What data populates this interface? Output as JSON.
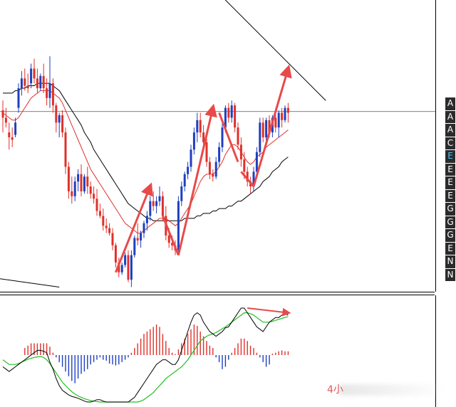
{
  "chart_data": [
    {
      "type": "candlestick",
      "panel": "price",
      "title": "",
      "grid": false,
      "colors": {
        "up": "#1f3fbf",
        "down": "#e0302a",
        "ma_fast": "#e0302a",
        "ma_slow": "#000000",
        "annotation": "#e84a4a"
      },
      "y_range": [
        0,
        100
      ],
      "horizontal_level": 70.5,
      "candles": [
        {
          "o": 71,
          "h": 75,
          "l": 62,
          "c": 68
        },
        {
          "o": 68,
          "h": 72,
          "l": 64,
          "c": 66
        },
        {
          "o": 62,
          "h": 66,
          "l": 55,
          "c": 60
        },
        {
          "o": 60,
          "h": 64,
          "l": 56,
          "c": 59
        },
        {
          "o": 61,
          "h": 68,
          "l": 60,
          "c": 66
        },
        {
          "o": 72,
          "h": 82,
          "l": 70,
          "c": 80
        },
        {
          "o": 80,
          "h": 87,
          "l": 77,
          "c": 84
        },
        {
          "o": 84,
          "h": 88,
          "l": 79,
          "c": 81
        },
        {
          "o": 81,
          "h": 86,
          "l": 78,
          "c": 80
        },
        {
          "o": 82,
          "h": 90,
          "l": 80,
          "c": 88
        },
        {
          "o": 88,
          "h": 92,
          "l": 82,
          "c": 84
        },
        {
          "o": 84,
          "h": 88,
          "l": 78,
          "c": 80
        },
        {
          "o": 80,
          "h": 86,
          "l": 79,
          "c": 85
        },
        {
          "o": 85,
          "h": 90,
          "l": 78,
          "c": 80
        },
        {
          "o": 80,
          "h": 84,
          "l": 73,
          "c": 76
        },
        {
          "o": 76,
          "h": 93,
          "l": 72,
          "c": 82
        },
        {
          "o": 82,
          "h": 84,
          "l": 70,
          "c": 73
        },
        {
          "o": 73,
          "h": 74,
          "l": 62,
          "c": 66
        },
        {
          "o": 66,
          "h": 70,
          "l": 60,
          "c": 69
        },
        {
          "o": 69,
          "h": 71,
          "l": 60,
          "c": 62
        },
        {
          "o": 62,
          "h": 64,
          "l": 45,
          "c": 48
        },
        {
          "o": 48,
          "h": 50,
          "l": 35,
          "c": 38
        },
        {
          "o": 38,
          "h": 44,
          "l": 33,
          "c": 36
        },
        {
          "o": 36,
          "h": 44,
          "l": 34,
          "c": 42
        },
        {
          "o": 42,
          "h": 47,
          "l": 38,
          "c": 45
        },
        {
          "o": 45,
          "h": 49,
          "l": 36,
          "c": 38
        },
        {
          "o": 38,
          "h": 45,
          "l": 37,
          "c": 44
        },
        {
          "o": 44,
          "h": 48,
          "l": 37,
          "c": 40
        },
        {
          "o": 40,
          "h": 42,
          "l": 35,
          "c": 37
        },
        {
          "o": 37,
          "h": 40,
          "l": 33,
          "c": 35
        },
        {
          "o": 35,
          "h": 39,
          "l": 28,
          "c": 30
        },
        {
          "o": 30,
          "h": 33,
          "l": 27,
          "c": 28
        },
        {
          "o": 28,
          "h": 31,
          "l": 22,
          "c": 24
        },
        {
          "o": 24,
          "h": 27,
          "l": 21,
          "c": 23
        },
        {
          "o": 23,
          "h": 25,
          "l": 20,
          "c": 21
        },
        {
          "o": 21,
          "h": 23,
          "l": 14,
          "c": 16
        },
        {
          "o": 16,
          "h": 17,
          "l": 7,
          "c": 9
        },
        {
          "o": 9,
          "h": 11,
          "l": 3,
          "c": 5
        },
        {
          "o": 5,
          "h": 9,
          "l": 4,
          "c": 8
        },
        {
          "o": 8,
          "h": 13,
          "l": 7,
          "c": 12
        },
        {
          "o": 12,
          "h": 14,
          "l": 1,
          "c": 2
        },
        {
          "o": 2,
          "h": 14,
          "l": -1,
          "c": 12
        },
        {
          "o": 12,
          "h": 20,
          "l": 11,
          "c": 19
        },
        {
          "o": 19,
          "h": 25,
          "l": 16,
          "c": 18
        },
        {
          "o": 18,
          "h": 22,
          "l": 15,
          "c": 21
        },
        {
          "o": 21,
          "h": 26,
          "l": 19,
          "c": 25
        },
        {
          "o": 25,
          "h": 30,
          "l": 22,
          "c": 28
        },
        {
          "o": 28,
          "h": 36,
          "l": 26,
          "c": 34
        },
        {
          "o": 34,
          "h": 38,
          "l": 30,
          "c": 32
        },
        {
          "o": 32,
          "h": 36,
          "l": 29,
          "c": 34
        },
        {
          "o": 34,
          "h": 40,
          "l": 32,
          "c": 36
        },
        {
          "o": 36,
          "h": 38,
          "l": 26,
          "c": 28
        },
        {
          "o": 28,
          "h": 32,
          "l": 18,
          "c": 20
        },
        {
          "o": 20,
          "h": 23,
          "l": 15,
          "c": 17
        },
        {
          "o": 17,
          "h": 20,
          "l": 14,
          "c": 16
        },
        {
          "o": 16,
          "h": 18,
          "l": 12,
          "c": 14
        },
        {
          "o": 14,
          "h": 36,
          "l": 12,
          "c": 34
        },
        {
          "o": 34,
          "h": 42,
          "l": 32,
          "c": 40
        },
        {
          "o": 40,
          "h": 46,
          "l": 38,
          "c": 45
        },
        {
          "o": 45,
          "h": 50,
          "l": 43,
          "c": 48
        },
        {
          "o": 48,
          "h": 57,
          "l": 46,
          "c": 55
        },
        {
          "o": 55,
          "h": 64,
          "l": 53,
          "c": 62
        },
        {
          "o": 62,
          "h": 70,
          "l": 58,
          "c": 67
        },
        {
          "o": 67,
          "h": 70,
          "l": 60,
          "c": 62
        },
        {
          "o": 62,
          "h": 65,
          "l": 55,
          "c": 58
        },
        {
          "o": 58,
          "h": 60,
          "l": 48,
          "c": 50
        },
        {
          "o": 50,
          "h": 52,
          "l": 43,
          "c": 45
        },
        {
          "o": 45,
          "h": 47,
          "l": 42,
          "c": 44
        },
        {
          "o": 44,
          "h": 52,
          "l": 43,
          "c": 50
        },
        {
          "o": 50,
          "h": 58,
          "l": 48,
          "c": 56
        },
        {
          "o": 56,
          "h": 67,
          "l": 54,
          "c": 64
        },
        {
          "o": 64,
          "h": 73,
          "l": 62,
          "c": 72
        },
        {
          "o": 72,
          "h": 74,
          "l": 66,
          "c": 68
        },
        {
          "o": 68,
          "h": 75,
          "l": 66,
          "c": 73
        },
        {
          "o": 73,
          "h": 74,
          "l": 62,
          "c": 64
        },
        {
          "o": 64,
          "h": 66,
          "l": 55,
          "c": 57
        },
        {
          "o": 57,
          "h": 60,
          "l": 48,
          "c": 51
        },
        {
          "o": 51,
          "h": 54,
          "l": 43,
          "c": 46
        },
        {
          "o": 46,
          "h": 48,
          "l": 40,
          "c": 42
        },
        {
          "o": 42,
          "h": 44,
          "l": 37,
          "c": 40
        },
        {
          "o": 40,
          "h": 48,
          "l": 38,
          "c": 46
        },
        {
          "o": 46,
          "h": 56,
          "l": 44,
          "c": 54
        },
        {
          "o": 54,
          "h": 68,
          "l": 52,
          "c": 66
        },
        {
          "o": 66,
          "h": 68,
          "l": 58,
          "c": 60
        },
        {
          "o": 60,
          "h": 68,
          "l": 58,
          "c": 67
        },
        {
          "o": 67,
          "h": 69,
          "l": 60,
          "c": 62
        },
        {
          "o": 62,
          "h": 69,
          "l": 60,
          "c": 68
        },
        {
          "o": 68,
          "h": 70,
          "l": 62,
          "c": 64
        },
        {
          "o": 64,
          "h": 71,
          "l": 60,
          "c": 70
        },
        {
          "o": 70,
          "h": 72,
          "l": 64,
          "c": 67
        },
        {
          "o": 67,
          "h": 73,
          "l": 66,
          "c": 72
        },
        {
          "o": 72,
          "h": 74,
          "l": 66,
          "c": 70
        }
      ],
      "ma_fast": [
        70,
        69,
        68,
        67,
        67,
        68,
        70,
        72,
        74,
        76,
        77,
        78,
        79,
        79,
        79,
        79,
        78,
        77,
        76,
        74,
        71,
        68,
        65,
        62,
        59,
        56,
        53,
        50,
        47,
        45,
        43,
        41,
        39,
        37,
        35,
        33,
        31,
        29,
        27,
        25,
        24,
        23,
        22,
        21,
        21,
        22,
        23,
        24,
        25,
        26,
        27,
        27,
        27,
        26,
        25,
        24,
        25,
        27,
        29,
        31,
        33,
        36,
        39,
        42,
        44,
        45,
        45,
        45,
        46,
        48,
        50,
        53,
        55,
        57,
        57,
        56,
        54,
        52,
        50,
        49,
        50,
        52,
        53,
        54,
        56,
        57,
        58,
        59,
        60,
        61,
        62,
        63
      ],
      "ma_slow": [
        78,
        78,
        78,
        78,
        79,
        79,
        80,
        80,
        81,
        81,
        81,
        82,
        82,
        82,
        82,
        82,
        81,
        80,
        79,
        77,
        75,
        73,
        71,
        69,
        67,
        65,
        62,
        60,
        58,
        55,
        53,
        51,
        49,
        47,
        45,
        43,
        41,
        39,
        37,
        35,
        33,
        32,
        31,
        30,
        29,
        28,
        27,
        27,
        26,
        26,
        26,
        26,
        26,
        26,
        26,
        26,
        26,
        26,
        27,
        27,
        27,
        27,
        28,
        28,
        29,
        29,
        29,
        30,
        30,
        31,
        31,
        31,
        32,
        32,
        33,
        34,
        34,
        35,
        36,
        37,
        38,
        39,
        40,
        42,
        43,
        44,
        46,
        47,
        48,
        50,
        51,
        52
      ],
      "annotations": {
        "red_arrows": [
          {
            "from": [
              36,
              5
            ],
            "to": [
              47,
              40
            ]
          },
          {
            "from": [
              51,
              28
            ],
            "to": [
              56,
              12
            ]
          },
          {
            "from": [
              56,
              12
            ],
            "to": [
              67,
              72
            ]
          },
          {
            "from": [
              69,
              70
            ],
            "to": [
              75,
              50
            ]
          },
          {
            "from": [
              76,
              46
            ],
            "to": [
              80,
              40
            ]
          },
          {
            "from": [
              80,
              40
            ],
            "to": [
              91,
              88
            ]
          }
        ],
        "trendlines": [
          {
            "from": [
              60,
              130
            ],
            "to": [
              103,
              75
            ]
          },
          {
            "from": [
              -10,
              4
            ],
            "to": [
              18,
              -1
            ]
          }
        ]
      }
    },
    {
      "type": "macd",
      "panel": "indicator",
      "y_range": [
        -10,
        10
      ],
      "histogram": [
        0,
        0,
        0,
        0,
        0,
        0,
        0,
        1.5,
        2,
        2.5,
        2.5,
        2.5,
        2.5,
        2.5,
        2.5,
        1.8,
        0.5,
        -0.5,
        -1.5,
        -2.5,
        -3.5,
        -4.5,
        -5.5,
        -6,
        -5,
        -4,
        -3.5,
        -3,
        -2,
        -1.5,
        -1,
        -0.5,
        -1,
        -1.2,
        -1.8,
        -2,
        -2.2,
        -2,
        -1.5,
        -1,
        -0.5,
        0.5,
        1.5,
        2.5,
        3.5,
        4.5,
        5,
        5.5,
        6,
        6.5,
        6,
        4.5,
        3,
        1.5,
        0.5,
        0.2,
        1.2,
        2.5,
        3.5,
        4.5,
        5.5,
        6.5,
        6.2,
        5,
        4,
        3,
        2,
        1.5,
        -0.5,
        -1.5,
        -3,
        -2.5,
        -1,
        0.5,
        1.5,
        2.5,
        3.5,
        3.5,
        3,
        2,
        1.5,
        0.5,
        -0.5,
        -1.5,
        -2.5,
        -2,
        0.3,
        0.5,
        0.8,
        1,
        0.8,
        0.8
      ],
      "macd_line": [
        -2.5,
        -3,
        -3.5,
        -3,
        -2.5,
        -2,
        -1.5,
        -1,
        -0.5,
        0,
        0.5,
        1,
        1,
        0.8,
        0.5,
        -1.5,
        -3,
        -5,
        -6.5,
        -7.5,
        -8,
        -8.5,
        -8.8,
        -9,
        -9.2,
        -9.5,
        -9.8,
        -10,
        -10,
        -9.8,
        -9.5,
        -9.5,
        -9.8,
        -10,
        -10,
        -10,
        -10,
        -10,
        -10,
        -10,
        -10,
        -9.5,
        -9,
        -8,
        -7,
        -6,
        -5,
        -4,
        -3,
        -2,
        -1.5,
        -1,
        -1,
        -1.5,
        -2,
        -2,
        -1,
        1,
        3,
        5,
        7,
        8.5,
        9,
        8.5,
        7,
        6,
        5,
        4.5,
        4,
        4.5,
        5,
        5.8,
        6,
        7,
        8,
        9,
        10,
        10,
        9,
        8,
        7,
        6,
        5.5,
        5,
        6,
        7,
        7.5,
        8,
        8,
        8.5,
        8.8,
        8.5
      ],
      "signal_line": [
        -1,
        -1.5,
        -2,
        -2,
        -2,
        -1.8,
        -1.5,
        -1.2,
        -0.9,
        -0.7,
        -0.5,
        -0.4,
        -0.3,
        -0.5,
        -1,
        -1.8,
        -2.8,
        -3.8,
        -4.8,
        -5.8,
        -6.5,
        -7.2,
        -7.8,
        -8.3,
        -8.7,
        -9,
        -9.3,
        -9.5,
        -9.7,
        -9.8,
        -9.9,
        -10,
        -10,
        -10,
        -10,
        -10,
        -10,
        -10,
        -10,
        -10,
        -10,
        -10,
        -10,
        -10,
        -9.8,
        -9.5,
        -9,
        -8.5,
        -8,
        -7.2,
        -6.5,
        -5.8,
        -5,
        -4.5,
        -4,
        -3.5,
        -3,
        -2.5,
        -1.8,
        -1,
        0,
        1,
        2,
        3,
        3.5,
        4,
        4.3,
        4.5,
        4.8,
        5.2,
        5.6,
        6,
        6.5,
        7,
        7.5,
        8,
        8.5,
        9,
        9,
        8.8,
        8.5,
        8,
        7.5,
        7,
        7,
        7,
        7.2,
        7.4,
        7.6,
        7.8,
        8,
        8.2
      ],
      "annotation_arrow": {
        "from": [
          78,
          10
        ],
        "to": [
          91,
          9
        ]
      }
    }
  ],
  "sidebar": {
    "buttons": [
      "A",
      "A",
      "A",
      "C",
      "E",
      "E",
      "E",
      "E",
      "G",
      "G",
      "G",
      "E",
      "N",
      "N"
    ],
    "active_index": 4
  },
  "watermark": {
    "text": "4小"
  }
}
